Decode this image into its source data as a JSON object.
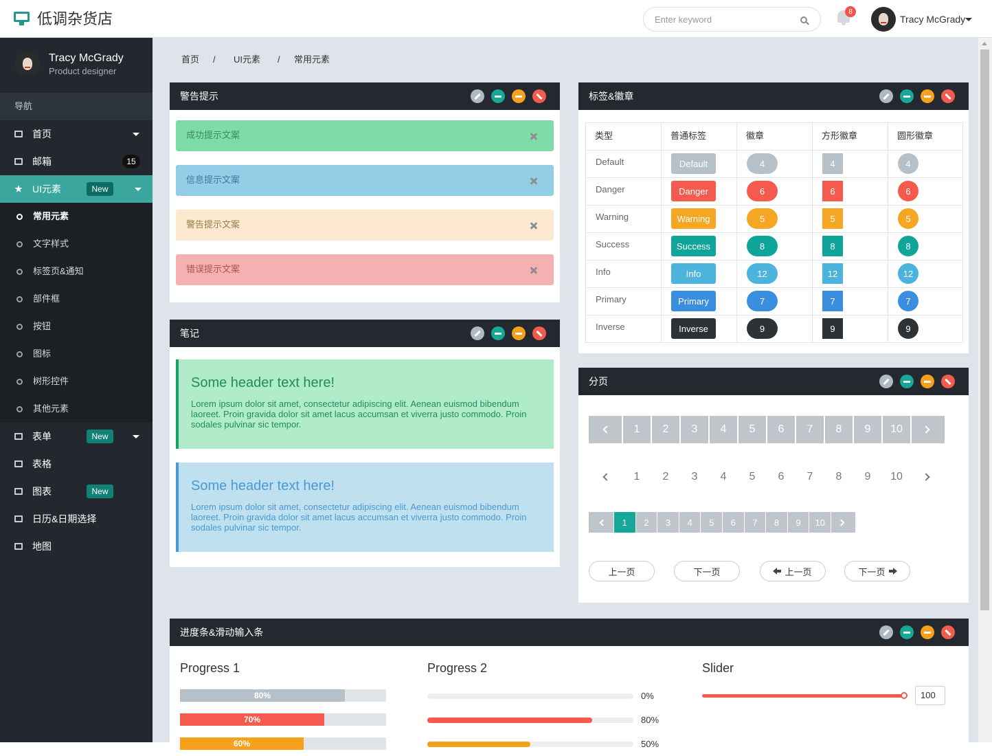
{
  "header": {
    "brand": "低调杂货店",
    "search_placeholder": "Enter keyword",
    "notifications": 8,
    "user": "Tracy McGrady"
  },
  "sidebar": {
    "user_name": "Tracy McGrady",
    "user_role": "Product designer",
    "nav_title": "导航",
    "items": [
      {
        "label": "首页"
      },
      {
        "label": "邮箱",
        "badge": 15
      },
      {
        "label": "UI元素",
        "badge": "New",
        "children": [
          "常用元素",
          "文字样式",
          "标签页&通知",
          "部件框",
          "按钮",
          "图标",
          "树形控件",
          "其他元素"
        ]
      },
      {
        "label": "表单",
        "badge": "New"
      },
      {
        "label": "表格"
      },
      {
        "label": "图表",
        "badge": "New"
      },
      {
        "label": "日历&日期选择"
      },
      {
        "label": "地图"
      }
    ]
  },
  "breadcrumb": {
    "items": [
      "首页",
      "UI元素",
      "常用元素"
    ],
    "separator": "/"
  },
  "alerts_panel": {
    "title": "警告提示",
    "alerts": [
      "成功提示文案",
      "信息提示文案",
      "警告提示文案",
      "错误提示文案"
    ]
  },
  "notes_panel": {
    "title": "笔记",
    "notes": [
      {
        "header": "Some header text here!",
        "body": "Lorem ipsum dolor sit amet, consectetur adipiscing elit. Aenean euismod bibendum laoreet. Proin gravida dolor sit amet lacus accumsan et viverra justo commodo. Proin sodales pulvinar sic tempor."
      },
      {
        "header": "Some header text here!",
        "body": "Lorem ipsum dolor sit amet, consectetur adipiscing elit. Aenean euismod bibendum laoreet. Proin gravida dolor sit amet lacus accumsan et viverra justo commodo. Proin sodales pulvinar sic tempor."
      }
    ]
  },
  "badges_panel": {
    "title": "标签&徽章",
    "columns": [
      "类型",
      "普通标签",
      "徽章",
      "方形徽章",
      "圆形徽章"
    ],
    "rows": [
      {
        "type": "Default",
        "label": "Default",
        "count": 4
      },
      {
        "type": "Danger",
        "label": "Danger",
        "count": 6
      },
      {
        "type": "Warning",
        "label": "Warning",
        "count": 5
      },
      {
        "type": "Success",
        "label": "Success",
        "count": 8
      },
      {
        "type": "Info",
        "label": "Info",
        "count": 12
      },
      {
        "type": "Primary",
        "label": "Primary",
        "count": 7
      },
      {
        "type": "Inverse",
        "label": "Inverse",
        "count": 9
      }
    ]
  },
  "pagination_panel": {
    "title": "分页",
    "pages": [
      1,
      2,
      3,
      4,
      5,
      6,
      7,
      8,
      9,
      10
    ],
    "buttons": [
      "上一页",
      "下一页",
      "上一页",
      "下一页"
    ]
  },
  "progress_panel": {
    "title": "进度条&滑动输入条",
    "progress_1": {
      "title": "Progress 1",
      "bars": [
        {
          "value": 80,
          "label": "80%"
        },
        {
          "value": 70,
          "label": "70%"
        },
        {
          "value": 60,
          "label": "60%"
        }
      ]
    },
    "progress_2": {
      "title": "Progress 2",
      "bars": [
        {
          "value": 0,
          "label": "0%"
        },
        {
          "value": 80,
          "label": "80%"
        },
        {
          "value": 50,
          "label": "50%"
        }
      ]
    },
    "slider": {
      "title": "Slider",
      "value": 100
    }
  }
}
